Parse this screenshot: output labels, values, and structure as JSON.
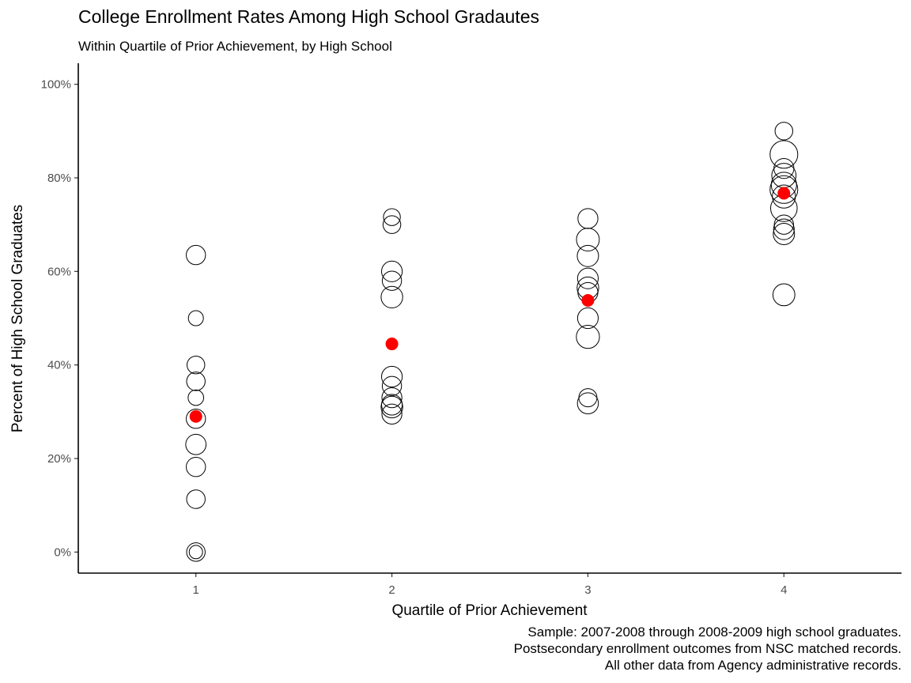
{
  "chart_data": {
    "type": "scatter",
    "title": "College Enrollment Rates Among High School Gradautes",
    "subtitle": "Within Quartile of Prior Achievement, by High School",
    "xlabel": "Quartile of Prior Achievement",
    "ylabel": "Percent of High School Graduates",
    "x_ticks": [
      "1",
      "2",
      "3",
      "4"
    ],
    "y_ticks": [
      "0%",
      "20%",
      "40%",
      "60%",
      "80%",
      "100%"
    ],
    "xlim": [
      0.4,
      4.6
    ],
    "ylim": [
      -0.045,
      1.045
    ],
    "grid": false,
    "legend": "none",
    "caption": [
      "Sample: 2007-2008 through 2008-2009 high school graduates.",
      "Postsecondary enrollment outcomes from NSC matched records.",
      "All other data from Agency administrative records."
    ],
    "colors": {
      "school_outline": "#000000",
      "average_fill": "#ff0000"
    },
    "series": [
      {
        "role": "school",
        "points": [
          {
            "x": 1,
            "y": 0.635,
            "size": 2.0
          },
          {
            "x": 1,
            "y": 0.5,
            "size": 1.0
          },
          {
            "x": 1,
            "y": 0.4,
            "size": 1.6
          },
          {
            "x": 1,
            "y": 0.365,
            "size": 1.8
          },
          {
            "x": 1,
            "y": 0.33,
            "size": 1.1
          },
          {
            "x": 1,
            "y": 0.285,
            "size": 2.0
          },
          {
            "x": 1,
            "y": 0.23,
            "size": 2.3
          },
          {
            "x": 1,
            "y": 0.182,
            "size": 2.0
          },
          {
            "x": 1,
            "y": 0.113,
            "size": 1.8
          },
          {
            "x": 1,
            "y": 0.0,
            "size": 1.8
          },
          {
            "x": 1,
            "y": 0.0,
            "size": 0.7
          },
          {
            "x": 2,
            "y": 0.716,
            "size": 1.4
          },
          {
            "x": 2,
            "y": 0.7,
            "size": 1.6
          },
          {
            "x": 2,
            "y": 0.6,
            "size": 2.4
          },
          {
            "x": 2,
            "y": 0.58,
            "size": 2.0
          },
          {
            "x": 2,
            "y": 0.545,
            "size": 2.7
          },
          {
            "x": 2,
            "y": 0.375,
            "size": 2.4
          },
          {
            "x": 2,
            "y": 0.355,
            "size": 2.0
          },
          {
            "x": 2,
            "y": 0.33,
            "size": 2.2
          },
          {
            "x": 2,
            "y": 0.315,
            "size": 2.4
          },
          {
            "x": 2,
            "y": 0.31,
            "size": 2.7
          },
          {
            "x": 2,
            "y": 0.295,
            "size": 2.2
          },
          {
            "x": 3,
            "y": 0.713,
            "size": 2.2
          },
          {
            "x": 3,
            "y": 0.668,
            "size": 3.1
          },
          {
            "x": 3,
            "y": 0.633,
            "size": 2.6
          },
          {
            "x": 3,
            "y": 0.585,
            "size": 2.4
          },
          {
            "x": 3,
            "y": 0.565,
            "size": 2.7
          },
          {
            "x": 3,
            "y": 0.555,
            "size": 2.2
          },
          {
            "x": 3,
            "y": 0.5,
            "size": 2.4
          },
          {
            "x": 3,
            "y": 0.46,
            "size": 3.2
          },
          {
            "x": 3,
            "y": 0.33,
            "size": 1.7
          },
          {
            "x": 3,
            "y": 0.318,
            "size": 2.5
          },
          {
            "x": 4,
            "y": 0.9,
            "size": 1.6
          },
          {
            "x": 4,
            "y": 0.85,
            "size": 5.0
          },
          {
            "x": 4,
            "y": 0.82,
            "size": 2.2
          },
          {
            "x": 4,
            "y": 0.805,
            "size": 3.6
          },
          {
            "x": 4,
            "y": 0.785,
            "size": 4.0
          },
          {
            "x": 4,
            "y": 0.775,
            "size": 5.0
          },
          {
            "x": 4,
            "y": 0.76,
            "size": 3.2
          },
          {
            "x": 4,
            "y": 0.735,
            "size": 4.5
          },
          {
            "x": 4,
            "y": 0.7,
            "size": 2.0
          },
          {
            "x": 4,
            "y": 0.69,
            "size": 2.4
          },
          {
            "x": 4,
            "y": 0.68,
            "size": 2.6
          },
          {
            "x": 4,
            "y": 0.55,
            "size": 2.8
          }
        ]
      },
      {
        "role": "average",
        "points": [
          {
            "x": 1,
            "y": 0.29
          },
          {
            "x": 2,
            "y": 0.445
          },
          {
            "x": 3,
            "y": 0.538
          },
          {
            "x": 4,
            "y": 0.767
          }
        ]
      }
    ]
  }
}
